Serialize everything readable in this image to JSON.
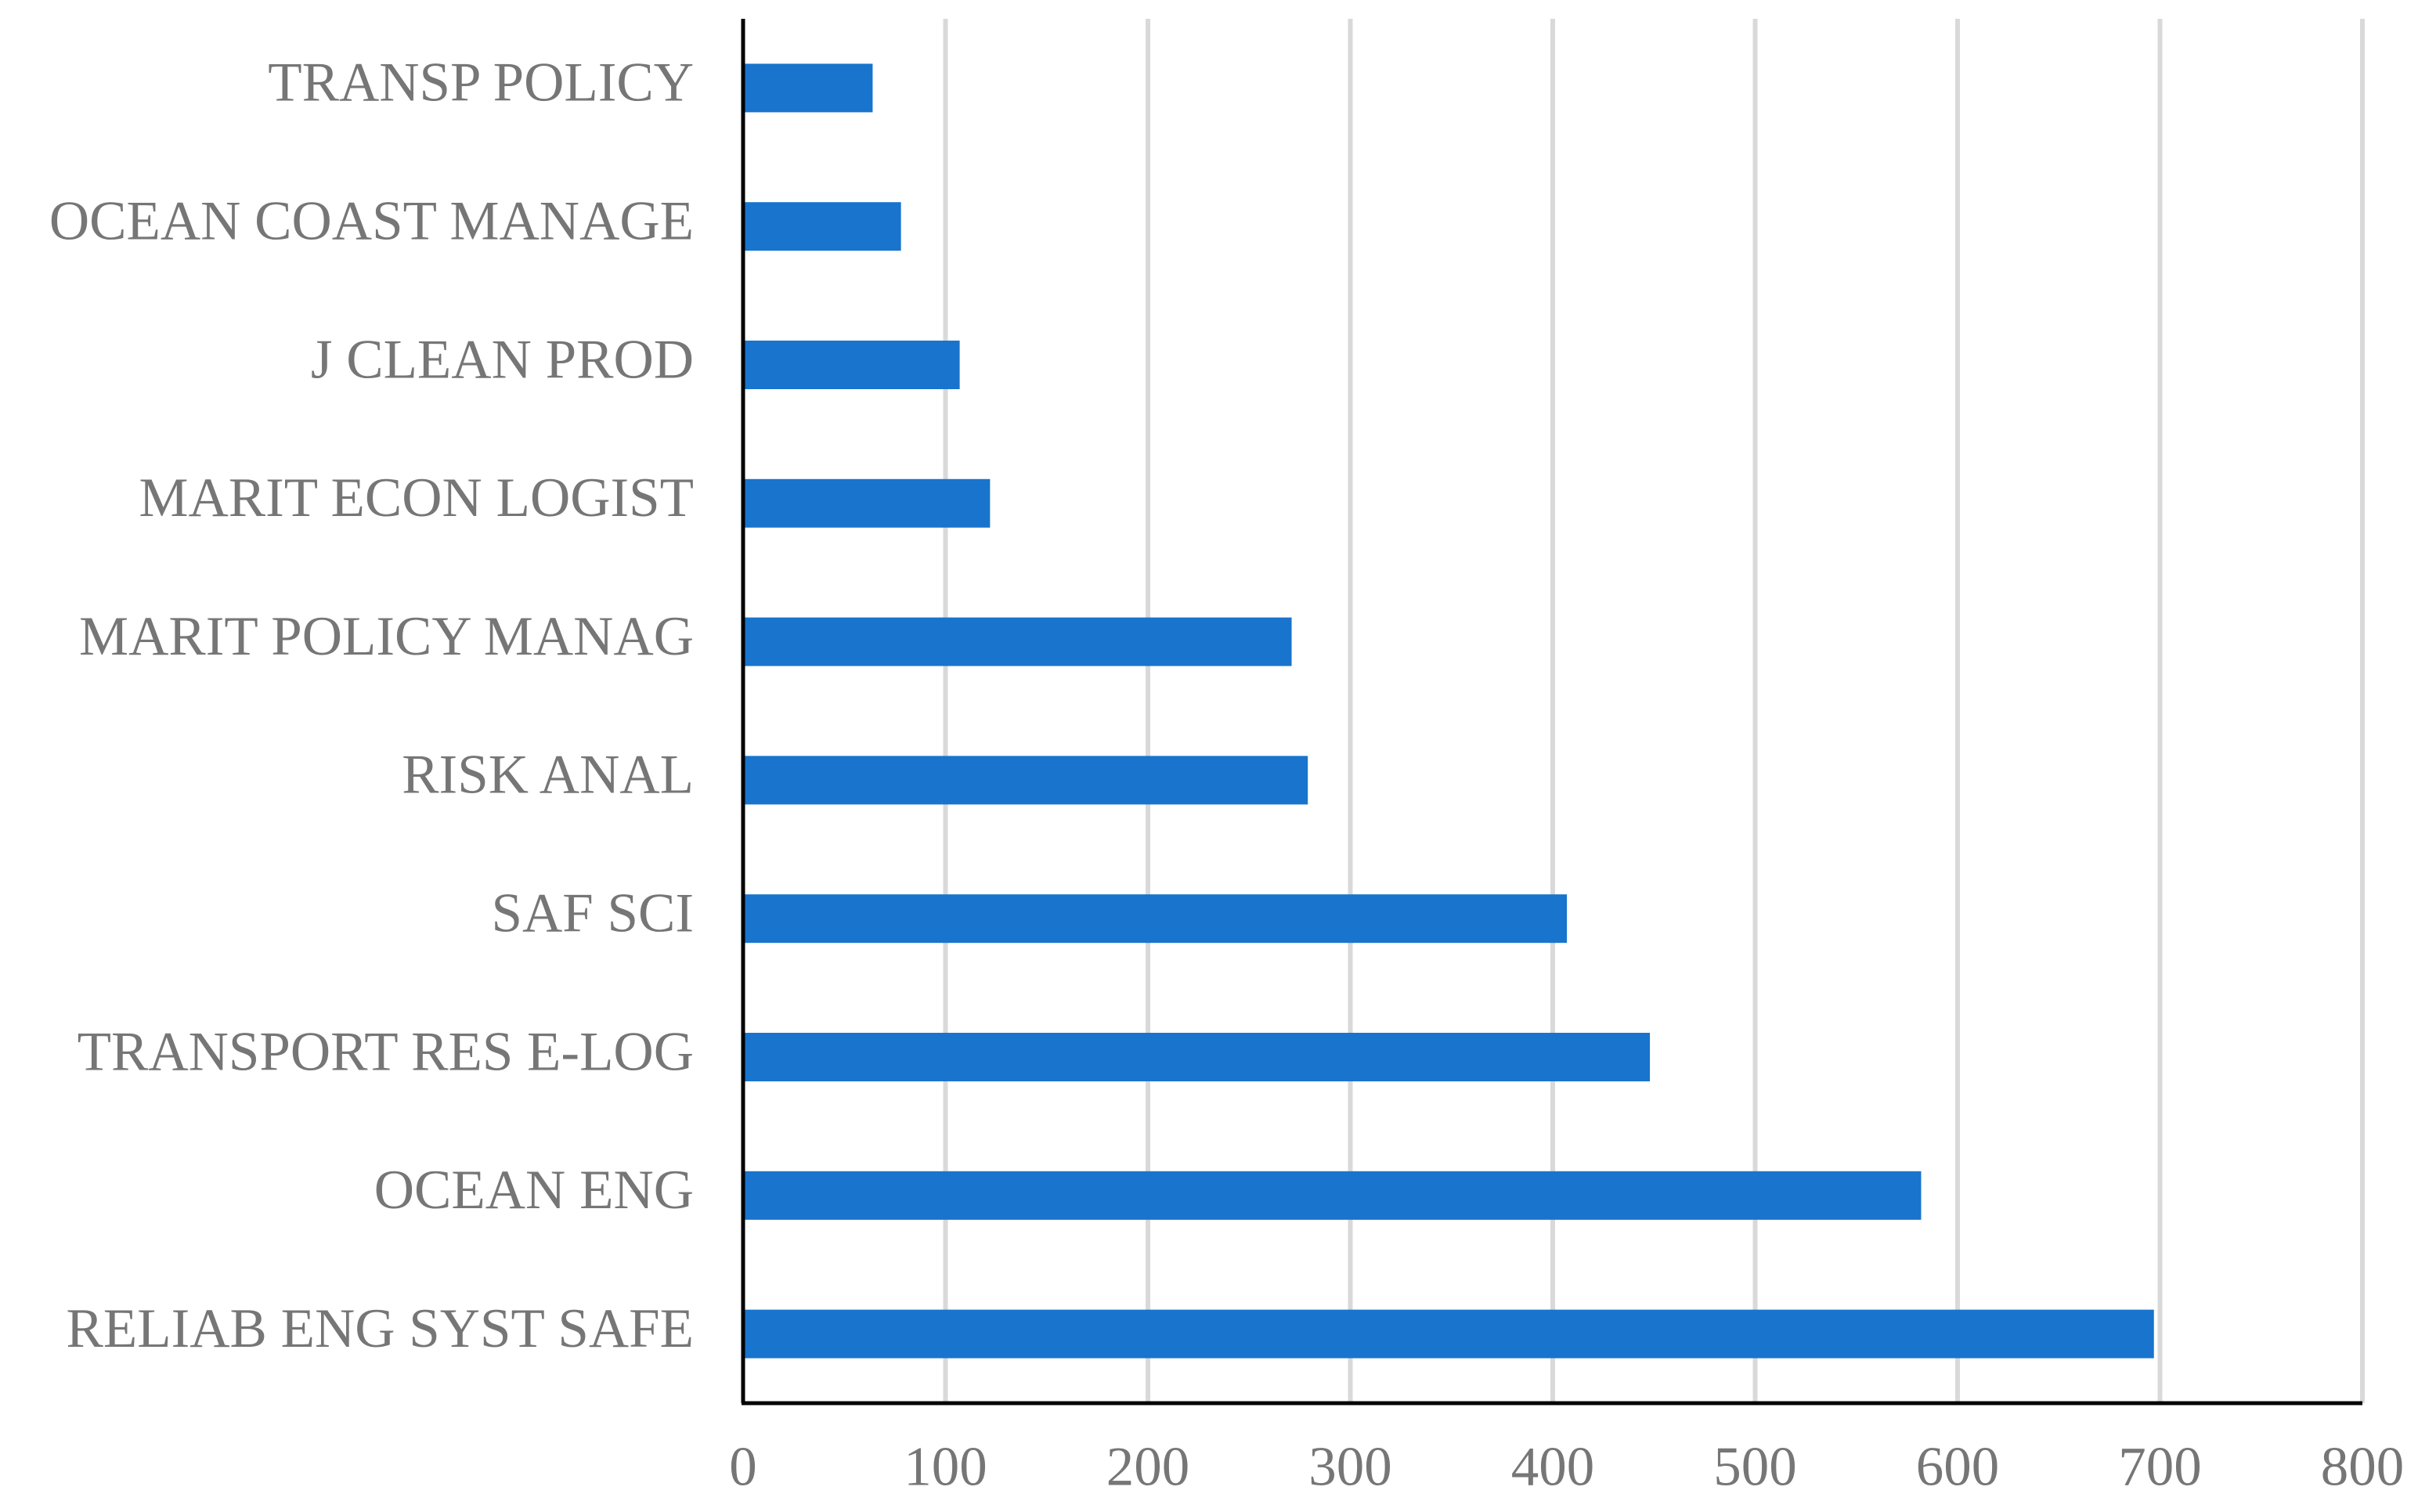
{
  "chart_data": {
    "type": "hbar",
    "categories": [
      "TRANSP POLICY",
      "OCEAN COAST MANAGE",
      "J CLEAN PROD",
      "MARIT ECON LOGIST",
      "MARIT POLICY MANAG",
      "RISK ANAL",
      "SAF SCI",
      "TRANSPORT RES E-LOG",
      "OCEAN ENG",
      "RELIAB ENG SYST SAFE"
    ],
    "values": [
      64,
      78,
      107,
      122,
      271,
      279,
      407,
      448,
      582,
      697
    ],
    "color": "#1874cd",
    "xlim": [
      0,
      800
    ],
    "xticks": [
      0,
      100,
      200,
      300,
      400,
      500,
      600,
      700,
      800
    ],
    "grid": true
  }
}
